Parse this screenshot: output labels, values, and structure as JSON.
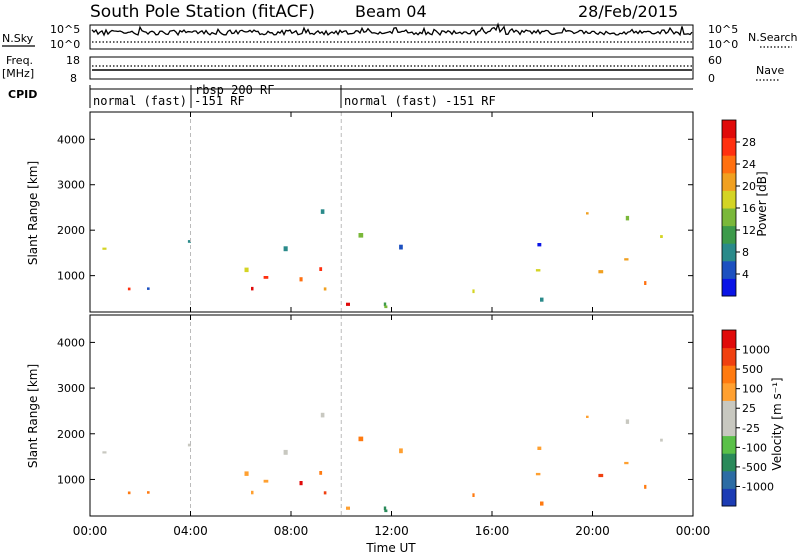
{
  "header": {
    "station": "South Pole Station (fitACF)",
    "beam": "Beam 04",
    "date": "28/Feb/2015"
  },
  "top_panels": {
    "nsky_label": "N.Sky",
    "nsearch_label": "N.Search",
    "nsky_ticks": [
      "10^5",
      "10^0"
    ],
    "freq_label_1": "Freq.",
    "freq_label_2": "[MHz]",
    "freq_ticks": [
      "18",
      "8"
    ],
    "nave_ticks": [
      "60",
      "0"
    ],
    "nave_label": "Nave",
    "cpid_label": "CPID",
    "cpid_segments": [
      {
        "label": "normal (fast) -151 RF",
        "start_hour": 0,
        "end_hour": 4.0
      },
      {
        "label": "rbsp 200 RF",
        "start_hour": 4.0,
        "end_hour": 10.0
      },
      {
        "label": "normal (fast) -151 RF",
        "start_hour": 10.0,
        "end_hour": 24.0
      }
    ]
  },
  "chart_data": [
    {
      "type": "heatmap",
      "panel": "power",
      "ylabel": "Slant Range [km]",
      "xlabel": "",
      "xlim": [
        0,
        24
      ],
      "ylim": [
        200,
        4600
      ],
      "yticks": [
        "1000",
        "2000",
        "3000",
        "4000"
      ],
      "colorbar": {
        "label": "Power [dB]",
        "ticks": [
          "4",
          "8",
          "12",
          "16",
          "20",
          "24",
          "28"
        ],
        "colors": [
          "#0a14e6",
          "#1c50c0",
          "#2a8a8a",
          "#3c9a4a",
          "#7ab83a",
          "#d4d424",
          "#f0a020",
          "#ff7010",
          "#ff3010",
          "#e00a0a"
        ]
      }
    },
    {
      "type": "heatmap",
      "panel": "velocity",
      "ylabel": "Slant Range [km]",
      "xlabel": "Time UT",
      "xlim": [
        0,
        24
      ],
      "ylim": [
        200,
        4600
      ],
      "yticks": [
        "1000",
        "2000",
        "3000",
        "4000"
      ],
      "xticks": [
        "00:00",
        "04:00",
        "08:00",
        "12:00",
        "16:00",
        "20:00",
        "00:00"
      ],
      "colorbar": {
        "label": "Velocity [m s⁻¹]",
        "ticks": [
          "1000",
          "500",
          "100",
          "25",
          "-25",
          "-100",
          "-500",
          "-1000"
        ],
        "colors": [
          "#1c3cb4",
          "#2c6ca4",
          "#2a8a5a",
          "#5ac048",
          "#c8c8c0",
          "#c8c8c0",
          "#ffa030",
          "#ff7a10",
          "#f04010",
          "#e00a0a"
        ]
      }
    }
  ]
}
